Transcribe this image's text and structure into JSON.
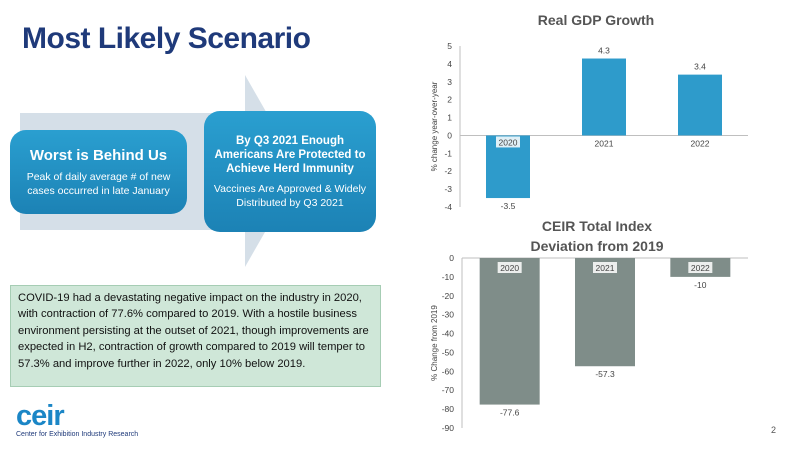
{
  "slide": {
    "title": "Most Likely Scenario",
    "page_number": "2"
  },
  "boxes": [
    {
      "title": "Worst is Behind Us",
      "subtitle": "Peak of daily average # of new cases occurred in late January"
    },
    {
      "title": "By Q3 2021 Enough Americans Are Protected to Achieve Herd Immunity",
      "subtitle": "Vaccines Are Approved & Widely Distributed by Q3 2021"
    }
  ],
  "note": "COVID-19 had a devastating negative impact on the industry in 2020, with contraction of 77.6% compared to 2019. With a hostile business environment persisting at the outset of 2021, though improvements are expected in H2, contraction of growth compared to 2019 will temper to 57.3% and improve further in 2022, only 10% below 2019.",
  "logo": {
    "word": "ceir",
    "tagline": "Center for Exhibition Industry Research"
  },
  "colors": {
    "title": "#1f3a7a",
    "box_fill": "#1f8fc4",
    "note_bg": "#cfe7d8",
    "gdp_bar": "#2e9bcb",
    "ceir_bar": "#7f8d89",
    "logo": "#1b86c6"
  },
  "chart_data": [
    {
      "type": "bar",
      "title": "Real GDP Growth",
      "ylabel": "% change year-over-year",
      "categories": [
        "2020",
        "2021",
        "2022"
      ],
      "values": [
        -3.5,
        4.3,
        3.4
      ],
      "data_labels": [
        "-3.5",
        "4.3",
        "3.4"
      ],
      "ylim": [
        -4,
        5
      ],
      "yticks": [
        5,
        4,
        3,
        2,
        1,
        0,
        -1,
        -2,
        -3,
        -4
      ],
      "grid": false,
      "color": "#2e9bcb"
    },
    {
      "type": "bar",
      "title": [
        "CEIR Total Index",
        "Deviation from 2019"
      ],
      "ylabel": "% Change from 2019",
      "categories": [
        "2020",
        "2021",
        "2022"
      ],
      "values": [
        -77.6,
        -57.3,
        -10
      ],
      "data_labels": [
        "-77.6",
        "-57.3",
        "-10"
      ],
      "ylim": [
        -90,
        0
      ],
      "yticks": [
        0,
        -10,
        -20,
        -30,
        -40,
        -50,
        -60,
        -70,
        -80,
        -90
      ],
      "grid": false,
      "color": "#7f8d89"
    }
  ]
}
